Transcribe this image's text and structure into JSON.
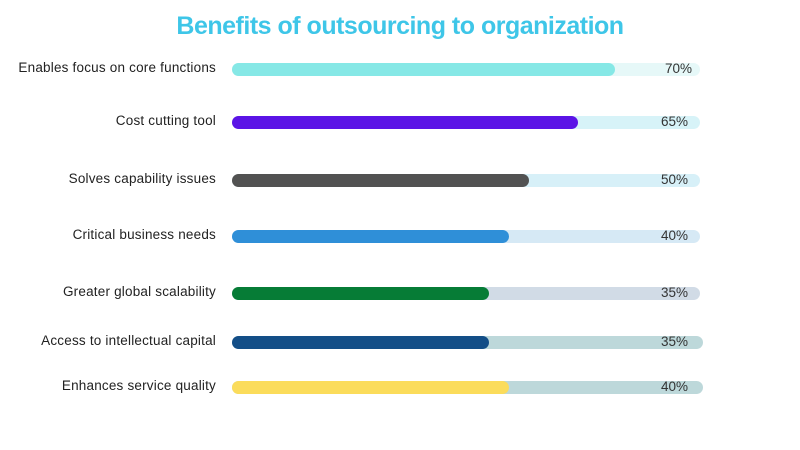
{
  "chart_data": {
    "type": "bar",
    "orientation": "horizontal",
    "title": "Benefits of outsourcing to organization",
    "categories": [
      "Enables focus on core functions",
      "Cost cutting tool",
      "Solves capability issues",
      "Critical business needs",
      "Greater global scalability",
      "Access to intellectual capital",
      "Enhances service quality"
    ],
    "values": [
      70,
      65,
      50,
      40,
      35,
      35,
      40
    ],
    "value_labels": [
      "70%",
      "65%",
      "50%",
      "40%",
      "35%",
      "35%",
      "40%"
    ],
    "unit": "%",
    "colors": [
      "#86e8e6",
      "#5b14e6",
      "#525252",
      "#2f8fd8",
      "#067c36",
      "#134e87",
      "#fbdc5b"
    ],
    "track_colors": [
      "#e6f8f8",
      "#d7f3f8",
      "#d7f0f8",
      "#d6e9f5",
      "#d1dbe6",
      "#bdd8da",
      "#bdd8da"
    ],
    "grid": false,
    "legend": "none"
  }
}
